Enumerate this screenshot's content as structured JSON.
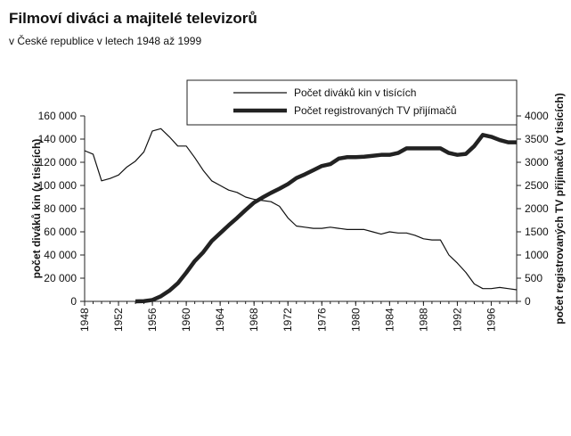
{
  "chart_data": {
    "type": "line",
    "title": "Filmoví diváci a majitelé televizorů",
    "subtitle": "v České republice v letech 1948 až 1999",
    "ylabel": "počet diváků kin (v tisících)",
    "y2label": "počet registrovaných TV přijímačů (v tisících)",
    "x": [
      1948,
      1949,
      1950,
      1951,
      1952,
      1953,
      1954,
      1955,
      1956,
      1957,
      1958,
      1959,
      1960,
      1961,
      1962,
      1963,
      1964,
      1965,
      1966,
      1967,
      1968,
      1969,
      1970,
      1971,
      1972,
      1973,
      1974,
      1975,
      1976,
      1977,
      1978,
      1979,
      1980,
      1981,
      1982,
      1983,
      1984,
      1985,
      1986,
      1987,
      1988,
      1989,
      1990,
      1991,
      1992,
      1993,
      1994,
      1995,
      1996,
      1997,
      1998,
      1999
    ],
    "xlim": [
      1948,
      1999
    ],
    "xticks": [
      1948,
      1952,
      1956,
      1960,
      1964,
      1968,
      1972,
      1976,
      1980,
      1984,
      1988,
      1992,
      1996
    ],
    "ylim": [
      0,
      160000
    ],
    "yticks": [
      {
        "value": 0,
        "label": "0"
      },
      {
        "value": 20000,
        "label": "20 000"
      },
      {
        "value": 40000,
        "label": "40 000"
      },
      {
        "value": 60000,
        "label": "60 000"
      },
      {
        "value": 80000,
        "label": "80 000"
      },
      {
        "value": 100000,
        "label": "100 000"
      },
      {
        "value": 120000,
        "label": "120 000"
      },
      {
        "value": 140000,
        "label": "140 000"
      },
      {
        "value": 160000,
        "label": "160 000"
      }
    ],
    "y2lim": [
      0,
      4000
    ],
    "y2ticks": [
      0,
      500,
      1000,
      1500,
      2000,
      2500,
      3000,
      3500,
      4000
    ],
    "series": [
      {
        "name": "Počet diváků kin v tisících",
        "color": "#111111",
        "width": 1.2,
        "values": [
          130000,
          127000,
          104000,
          106000,
          109000,
          116000,
          121000,
          129000,
          147000,
          149000,
          142000,
          134000,
          134000,
          124000,
          113000,
          104000,
          100000,
          96000,
          94000,
          90000,
          88000,
          87000,
          86000,
          82000,
          72000,
          65000,
          64000,
          63000,
          63000,
          64000,
          63000,
          62000,
          62000,
          62000,
          60000,
          58000,
          60000,
          59000,
          59000,
          57000,
          54000,
          53000,
          53000,
          40000,
          33000,
          25000,
          15000,
          11000,
          11000,
          12000,
          11000,
          10000
        ]
      },
      {
        "name": "Počet registrovaných TV přijímačů",
        "color": "#222222",
        "width": 4.5,
        "axis": "y2",
        "values": [
          null,
          null,
          null,
          null,
          null,
          null,
          0,
          5,
          30,
          110,
          230,
          390,
          620,
          870,
          1060,
          1300,
          1470,
          1640,
          1800,
          1970,
          2130,
          2240,
          2340,
          2430,
          2530,
          2660,
          2740,
          2830,
          2920,
          2960,
          3080,
          3110,
          3110,
          3120,
          3140,
          3160,
          3160,
          3200,
          3300,
          3300,
          3300,
          3300,
          3300,
          3200,
          3160,
          3180,
          3350,
          3590,
          3550,
          3480,
          3430,
          3430
        ]
      }
    ]
  }
}
